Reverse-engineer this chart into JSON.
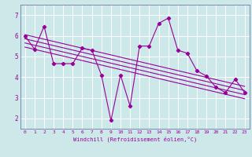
{
  "xlabel": "Windchill (Refroidissement éolien,°C)",
  "bg_color": "#cce8e8",
  "line_color": "#990099",
  "grid_color": "#ffffff",
  "xlim": [
    -0.5,
    23.5
  ],
  "ylim": [
    1.5,
    7.5
  ],
  "yticks": [
    2,
    3,
    4,
    5,
    6,
    7
  ],
  "xticks": [
    0,
    1,
    2,
    3,
    4,
    5,
    6,
    7,
    8,
    9,
    10,
    11,
    12,
    13,
    14,
    15,
    16,
    17,
    18,
    19,
    20,
    21,
    22,
    23
  ],
  "main_series_x": [
    0,
    1,
    2,
    3,
    4,
    5,
    6,
    7,
    8,
    9,
    10,
    11,
    12,
    13,
    14,
    15,
    16,
    17,
    18,
    19,
    20,
    21,
    22,
    23
  ],
  "main_series_y": [
    6.0,
    5.35,
    6.45,
    4.65,
    4.65,
    4.65,
    5.4,
    5.3,
    4.1,
    1.9,
    4.1,
    2.6,
    5.5,
    5.5,
    6.6,
    6.85,
    5.3,
    5.15,
    4.3,
    4.05,
    3.5,
    3.25,
    3.9,
    3.25
  ],
  "trend1_x": [
    0,
    23
  ],
  "trend1_y": [
    6.05,
    3.55
  ],
  "trend2_x": [
    0,
    23
  ],
  "trend2_y": [
    5.85,
    3.35
  ],
  "trend3_x": [
    0,
    23
  ],
  "trend3_y": [
    5.65,
    3.15
  ],
  "trend4_x": [
    0,
    23
  ],
  "trend4_y": [
    5.45,
    2.95
  ]
}
